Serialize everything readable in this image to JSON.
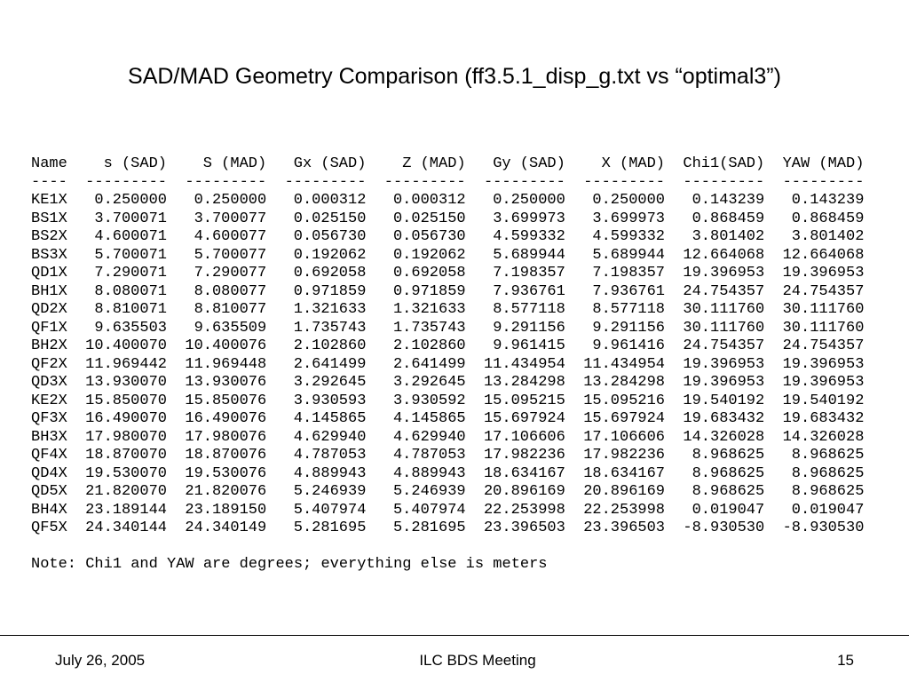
{
  "header": {
    "title": "SAD/MAD Geometry Comparison (ff3.5.1_disp_g.txt vs “optimal3”)"
  },
  "table": {
    "columns": [
      "Name",
      "s (SAD)",
      "S (MAD)",
      "Gx (SAD)",
      "Z (MAD)",
      "Gy (SAD)",
      "X (MAD)",
      "Chi1(SAD)",
      "YAW (MAD)"
    ],
    "separator": [
      "----",
      "---------",
      "---------",
      "---------",
      "---------",
      "---------",
      "---------",
      "---------",
      "---------"
    ],
    "rows": [
      [
        "KE1X",
        "0.250000",
        "0.250000",
        "0.000312",
        "0.000312",
        "0.250000",
        "0.250000",
        "0.143239",
        "0.143239"
      ],
      [
        "BS1X",
        "3.700071",
        "3.700077",
        "0.025150",
        "0.025150",
        "3.699973",
        "3.699973",
        "0.868459",
        "0.868459"
      ],
      [
        "BS2X",
        "4.600071",
        "4.600077",
        "0.056730",
        "0.056730",
        "4.599332",
        "4.599332",
        "3.801402",
        "3.801402"
      ],
      [
        "BS3X",
        "5.700071",
        "5.700077",
        "0.192062",
        "0.192062",
        "5.689944",
        "5.689944",
        "12.664068",
        "12.664068"
      ],
      [
        "QD1X",
        "7.290071",
        "7.290077",
        "0.692058",
        "0.692058",
        "7.198357",
        "7.198357",
        "19.396953",
        "19.396953"
      ],
      [
        "BH1X",
        "8.080071",
        "8.080077",
        "0.971859",
        "0.971859",
        "7.936761",
        "7.936761",
        "24.754357",
        "24.754357"
      ],
      [
        "QD2X",
        "8.810071",
        "8.810077",
        "1.321633",
        "1.321633",
        "8.577118",
        "8.577118",
        "30.111760",
        "30.111760"
      ],
      [
        "QF1X",
        "9.635503",
        "9.635509",
        "1.735743",
        "1.735743",
        "9.291156",
        "9.291156",
        "30.111760",
        "30.111760"
      ],
      [
        "BH2X",
        "10.400070",
        "10.400076",
        "2.102860",
        "2.102860",
        "9.961415",
        "9.961416",
        "24.754357",
        "24.754357"
      ],
      [
        "QF2X",
        "11.969442",
        "11.969448",
        "2.641499",
        "2.641499",
        "11.434954",
        "11.434954",
        "19.396953",
        "19.396953"
      ],
      [
        "QD3X",
        "13.930070",
        "13.930076",
        "3.292645",
        "3.292645",
        "13.284298",
        "13.284298",
        "19.396953",
        "19.396953"
      ],
      [
        "KE2X",
        "15.850070",
        "15.850076",
        "3.930593",
        "3.930592",
        "15.095215",
        "15.095216",
        "19.540192",
        "19.540192"
      ],
      [
        "QF3X",
        "16.490070",
        "16.490076",
        "4.145865",
        "4.145865",
        "15.697924",
        "15.697924",
        "19.683432",
        "19.683432"
      ],
      [
        "BH3X",
        "17.980070",
        "17.980076",
        "4.629940",
        "4.629940",
        "17.106606",
        "17.106606",
        "14.326028",
        "14.326028"
      ],
      [
        "QF4X",
        "18.870070",
        "18.870076",
        "4.787053",
        "4.787053",
        "17.982236",
        "17.982236",
        "8.968625",
        "8.968625"
      ],
      [
        "QD4X",
        "19.530070",
        "19.530076",
        "4.889943",
        "4.889943",
        "18.634167",
        "18.634167",
        "8.968625",
        "8.968625"
      ],
      [
        "QD5X",
        "21.820070",
        "21.820076",
        "5.246939",
        "5.246939",
        "20.896169",
        "20.896169",
        "8.968625",
        "8.968625"
      ],
      [
        "BH4X",
        "23.189144",
        "23.189150",
        "5.407974",
        "5.407974",
        "22.253998",
        "22.253998",
        "0.019047",
        "0.019047"
      ],
      [
        "QF5X",
        "24.340144",
        "24.340149",
        "5.281695",
        "5.281695",
        "23.396503",
        "23.396503",
        "-8.930530",
        "-8.930530"
      ]
    ],
    "note": "Note: Chi1 and YAW are degrees; everything else is meters"
  },
  "footer": {
    "date": "July 26, 2005",
    "event": "ILC BDS Meeting",
    "page": "15"
  }
}
